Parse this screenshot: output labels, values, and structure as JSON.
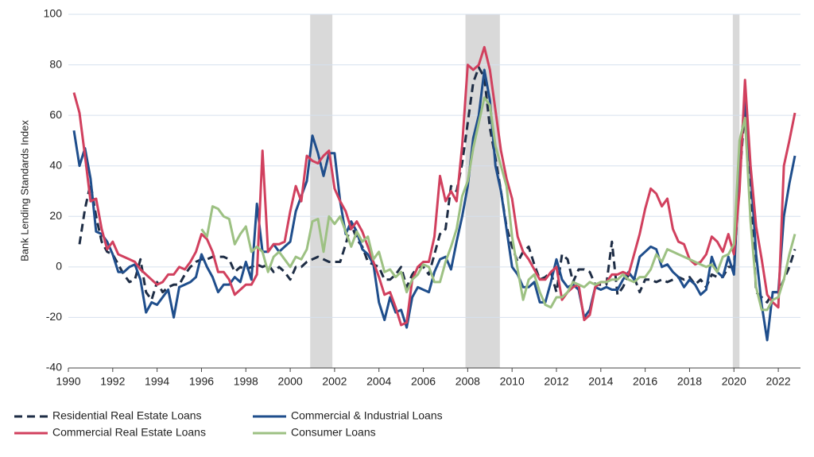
{
  "chart_data": {
    "type": "line",
    "ylabel": "Bank Lending Standards Index",
    "xlim": [
      1990,
      2023
    ],
    "xticks": [
      1990,
      1992,
      1994,
      1996,
      1998,
      2000,
      2002,
      2004,
      2006,
      2008,
      2010,
      2012,
      2014,
      2016,
      2018,
      2020,
      2022
    ],
    "ylim": [
      -40,
      100
    ],
    "yticks": [
      -40,
      -20,
      0,
      20,
      40,
      60,
      80,
      100
    ],
    "grid": true,
    "legend": "bottom",
    "recessions": [
      [
        2000.9,
        2001.9
      ],
      [
        2007.9,
        2009.45
      ],
      [
        2019.95,
        2020.25
      ]
    ],
    "recession_color": "#d9d9d9",
    "x": [
      1990.25,
      1990.5,
      1990.75,
      1991,
      1991.25,
      1991.5,
      1991.75,
      1992,
      1992.25,
      1992.5,
      1992.75,
      1993,
      1993.25,
      1993.5,
      1993.75,
      1994,
      1994.25,
      1994.5,
      1994.75,
      1995,
      1995.25,
      1995.5,
      1995.75,
      1996,
      1996.25,
      1996.5,
      1996.75,
      1997,
      1997.25,
      1997.5,
      1997.75,
      1998,
      1998.25,
      1998.5,
      1998.75,
      1999,
      1999.25,
      1999.5,
      1999.75,
      2000,
      2000.25,
      2000.5,
      2000.75,
      2001,
      2001.25,
      2001.5,
      2001.75,
      2002,
      2002.25,
      2002.5,
      2002.75,
      2003,
      2003.25,
      2003.5,
      2003.75,
      2004,
      2004.25,
      2004.5,
      2004.75,
      2005,
      2005.25,
      2005.5,
      2005.75,
      2006,
      2006.25,
      2006.5,
      2006.75,
      2007,
      2007.25,
      2007.5,
      2007.75,
      2008,
      2008.25,
      2008.5,
      2008.75,
      2009,
      2009.25,
      2009.5,
      2009.75,
      2010,
      2010.25,
      2010.5,
      2010.75,
      2011,
      2011.25,
      2011.5,
      2011.75,
      2012,
      2012.25,
      2012.5,
      2012.75,
      2013,
      2013.25,
      2013.5,
      2013.75,
      2014,
      2014.25,
      2014.5,
      2014.75,
      2015,
      2015.25,
      2015.5,
      2015.75,
      2016,
      2016.25,
      2016.5,
      2016.75,
      2017,
      2017.25,
      2017.5,
      2017.75,
      2018,
      2018.25,
      2018.5,
      2018.75,
      2019,
      2019.25,
      2019.5,
      2019.75,
      2020,
      2020.25,
      2020.5,
      2020.75,
      2021,
      2021.25,
      2021.5,
      2021.75,
      2022,
      2022.25,
      2022.5,
      2022.75
    ],
    "series": [
      {
        "name": "Residential Real Estate Loans",
        "color": "#1e2d45",
        "dashed": true,
        "values": [
          null,
          9,
          23,
          33,
          20,
          10,
          6,
          5,
          1,
          -3,
          -6,
          -5,
          3,
          -10,
          -13,
          -6,
          -10,
          -8,
          -7,
          -7,
          -3,
          0,
          2,
          3,
          3,
          4,
          4,
          4,
          3,
          -2,
          0,
          -1,
          0,
          1,
          0,
          1,
          -2,
          0,
          -2,
          -5,
          0,
          0,
          2,
          3,
          4,
          3,
          2,
          2,
          2,
          9,
          17,
          11,
          8,
          2,
          1,
          0,
          -5,
          -5,
          -3,
          0,
          -8,
          -3,
          0,
          0,
          -3,
          5,
          13,
          15,
          32,
          30,
          41,
          57,
          73,
          79,
          75,
          55,
          43,
          30,
          16,
          8,
          2,
          6,
          8,
          1,
          -5,
          -4,
          -2,
          -10,
          5,
          3,
          -6,
          -1,
          -1,
          -2,
          -7,
          -7,
          -7,
          10,
          -11,
          -8,
          -3,
          -4,
          -10,
          -5,
          -5,
          -6,
          -5,
          -6,
          -5,
          -4,
          -5,
          -4,
          -7,
          -5,
          -8,
          -3,
          -4,
          -4,
          0,
          0,
          34,
          64,
          30,
          -10,
          -12,
          -14,
          -10,
          -10,
          -5,
          0,
          7
        ]
      },
      {
        "name": "Commercial & Industrial Loans",
        "color": "#1f4e8c",
        "dashed": false,
        "values": [
          54,
          40,
          47,
          35,
          14,
          13,
          10,
          5,
          -2,
          -2,
          0,
          1,
          -5,
          -18,
          -14,
          -15,
          -12,
          -9,
          -20,
          -8,
          -7,
          -6,
          -4,
          5,
          0,
          -4,
          -10,
          -7,
          -7,
          -4,
          -6,
          2,
          -5,
          25,
          6,
          6,
          9,
          6,
          8,
          10,
          22,
          28,
          34,
          52,
          45,
          36,
          45,
          45,
          26,
          13,
          18,
          14,
          7,
          5,
          1,
          -14,
          -21,
          -12,
          -18,
          -17,
          -24,
          -12,
          -8,
          -9,
          -10,
          -2,
          3,
          4,
          -1,
          10,
          20,
          32,
          51,
          60,
          78,
          66,
          40,
          30,
          15,
          0,
          -3,
          -8,
          -8,
          -6,
          -14,
          -14,
          -6,
          3,
          -5,
          -8,
          -7,
          -9,
          -20,
          -17,
          -8,
          -9,
          -8,
          -9,
          -9,
          -5,
          -2,
          -5,
          4,
          6,
          8,
          7,
          0,
          1,
          -2,
          -4,
          -8,
          -5,
          -7,
          -11,
          -9,
          4,
          -2,
          -4,
          4,
          -3,
          42,
          66,
          38,
          5,
          -15,
          -29,
          -10,
          -10,
          20,
          33,
          44
        ]
      },
      {
        "name": "Commercial Real Estate Loans",
        "color": "#d1405e",
        "dashed": false,
        "values": [
          69,
          61,
          44,
          26,
          27,
          15,
          7,
          10,
          5,
          4,
          3,
          2,
          -1,
          -3,
          -5,
          -7,
          -6,
          -3,
          -3,
          0,
          -1,
          2,
          6,
          13,
          11,
          6,
          -2,
          -2,
          -5,
          -11,
          -9,
          -7,
          -7,
          -3,
          46,
          6,
          9,
          9,
          10,
          22,
          32,
          26,
          44,
          42,
          41,
          44,
          46,
          31,
          26,
          22,
          15,
          18,
          14,
          8,
          2,
          -4,
          -11,
          -10,
          -16,
          -23,
          -22,
          -5,
          0,
          2,
          2,
          12,
          36,
          26,
          30,
          26,
          48,
          80,
          78,
          80,
          87,
          78,
          62,
          46,
          35,
          27,
          12,
          6,
          3,
          -1,
          -5,
          -5,
          -2,
          0,
          -13,
          -10,
          -8,
          -7,
          -21,
          -19,
          -8,
          -6,
          -6,
          -3,
          -3,
          -2,
          -3,
          5,
          13,
          23,
          31,
          29,
          24,
          27,
          15,
          10,
          9,
          3,
          1,
          2,
          5,
          12,
          10,
          6,
          13,
          5,
          30,
          74,
          40,
          16,
          3,
          -11,
          -14,
          -16,
          40,
          50,
          61
        ]
      },
      {
        "name": "Consumer Loans",
        "color": "#9dc183",
        "dashed": false,
        "values": [
          null,
          null,
          null,
          null,
          null,
          null,
          null,
          null,
          null,
          null,
          null,
          null,
          null,
          null,
          null,
          null,
          null,
          null,
          null,
          null,
          null,
          null,
          null,
          15,
          12,
          24,
          23,
          20,
          19,
          9,
          13,
          16,
          6,
          8,
          6,
          -2,
          4,
          6,
          3,
          0,
          4,
          3,
          7,
          18,
          19,
          6,
          20,
          17,
          20,
          14,
          8,
          14,
          10,
          12,
          3,
          6,
          -2,
          -1,
          -4,
          -2,
          -10,
          -5,
          -3,
          1,
          0,
          -6,
          -6,
          2,
          8,
          15,
          28,
          34,
          47,
          57,
          67,
          64,
          48,
          40,
          32,
          12,
          -1,
          -13,
          -5,
          -3,
          -10,
          -15,
          -16,
          -12,
          -12,
          -10,
          -6,
          -7,
          -8,
          -6,
          -7,
          -6,
          -6,
          -5,
          -5,
          -3,
          -5,
          -6,
          -4,
          -4,
          -1,
          5,
          2,
          7,
          6,
          5,
          4,
          3,
          2,
          1,
          0,
          1,
          -2,
          4,
          5,
          9,
          50,
          59,
          18,
          -8,
          -17,
          -17,
          -13,
          -12,
          -5,
          5,
          13
        ]
      }
    ]
  }
}
